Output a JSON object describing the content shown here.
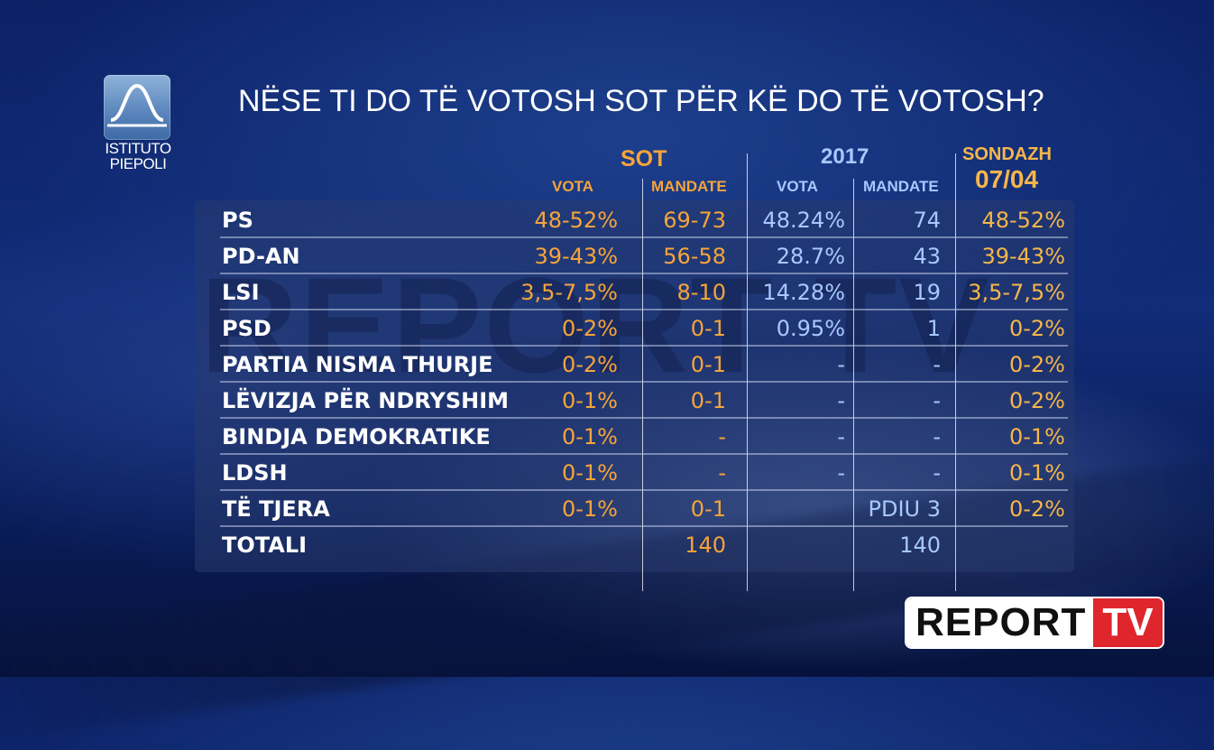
{
  "logo": {
    "line1": "ISTITUTO",
    "line2": "PIEPOLI"
  },
  "question": "NËSE TI DO TË VOTOSH SOT PËR KË DO TË VOTOSH?",
  "watermark": "REPORT TV",
  "headers": {
    "sot": "SOT",
    "y2017": "2017",
    "sondazh_line1": "SONDAZH",
    "sondazh_line2": "07/04",
    "vota_sot": "VOTA",
    "mandate_sot": "MANDATE",
    "vota_2017": "VOTA",
    "mandate_2017": "MANDATE"
  },
  "chart_data": {
    "type": "table",
    "title": "NËSE TI DO TË VOTOSH SOT PËR KË DO TË VOTOSH?",
    "columns": [
      "",
      "SOT VOTA",
      "SOT MANDATE",
      "2017 VOTA",
      "2017 MANDATE",
      "SONDAZH 07/04"
    ],
    "rows": [
      {
        "party": "PS",
        "sot_vota": "48-52%",
        "sot_mandate": "69-73",
        "vota_2017": "48.24%",
        "mandate_2017": "74",
        "sondazh": "48-52%"
      },
      {
        "party": "PD-AN",
        "sot_vota": "39-43%",
        "sot_mandate": "56-58",
        "vota_2017": "28.7%",
        "mandate_2017": "43",
        "sondazh": "39-43%"
      },
      {
        "party": "LSI",
        "sot_vota": "3,5-7,5%",
        "sot_mandate": "8-10",
        "vota_2017": "14.28%",
        "mandate_2017": "19",
        "sondazh": "3,5-7,5%"
      },
      {
        "party": "PSD",
        "sot_vota": "0-2%",
        "sot_mandate": "0-1",
        "vota_2017": "0.95%",
        "mandate_2017": "1",
        "sondazh": "0-2%"
      },
      {
        "party": "PARTIA NISMA THURJE",
        "sot_vota": "0-2%",
        "sot_mandate": "0-1",
        "vota_2017": "-",
        "mandate_2017": "-",
        "sondazh": "0-2%"
      },
      {
        "party": "LËVIZJA PËR NDRYSHIM",
        "sot_vota": "0-1%",
        "sot_mandate": "0-1",
        "vota_2017": "-",
        "mandate_2017": "-",
        "sondazh": "0-2%"
      },
      {
        "party": "BINDJA DEMOKRATIKE",
        "sot_vota": "0-1%",
        "sot_mandate": "-",
        "vota_2017": "-",
        "mandate_2017": "-",
        "sondazh": "0-1%"
      },
      {
        "party": "LDSH",
        "sot_vota": "0-1%",
        "sot_mandate": "-",
        "vota_2017": "-",
        "mandate_2017": "-",
        "sondazh": "0-1%"
      },
      {
        "party": "TË TJERA",
        "sot_vota": "0-1%",
        "sot_mandate": "0-1",
        "vota_2017": "",
        "mandate_2017": "PDIU 3",
        "sondazh": "0-2%"
      },
      {
        "party": "TOTALI",
        "sot_vota": "",
        "sot_mandate": "140",
        "vota_2017": "",
        "mandate_2017": "140",
        "sondazh": ""
      }
    ]
  },
  "brand": {
    "left": "REPORT",
    "right": "TV"
  },
  "colors": {
    "sot": "#f6a43a",
    "y2017": "#a8c8ff",
    "sondazh": "#f6b64a",
    "brand_red": "#e0262d"
  }
}
